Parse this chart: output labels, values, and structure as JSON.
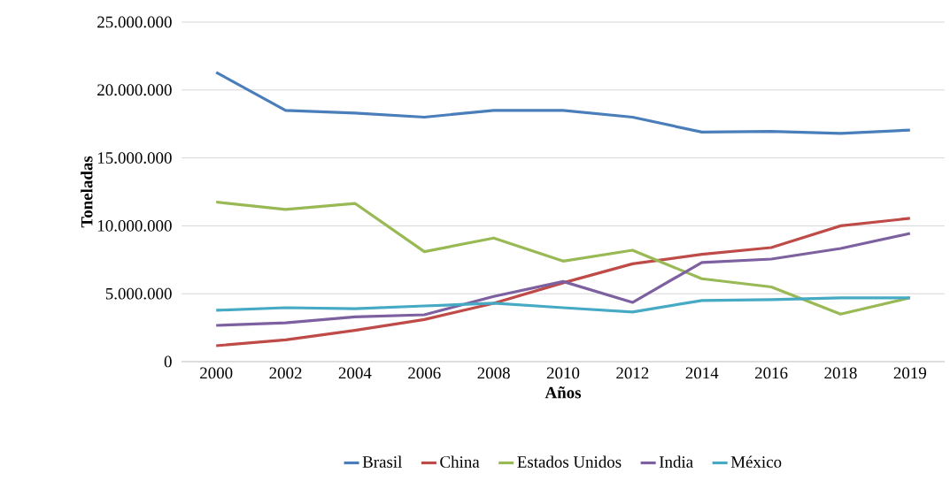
{
  "chart_data": {
    "type": "line",
    "xlabel": "Años",
    "ylabel": "Toneladas",
    "categories": [
      "2000",
      "2002",
      "2004",
      "2006",
      "2008",
      "2010",
      "2012",
      "2014",
      "2016",
      "2018",
      "2019"
    ],
    "series": [
      {
        "name": "Brasil",
        "color": "#4a7ebb",
        "values": [
          21300000,
          18500000,
          18300000,
          18000000,
          18500000,
          18500000,
          18000000,
          16900000,
          16950000,
          16800000,
          17050000
        ]
      },
      {
        "name": "China",
        "color": "#be4b48",
        "values": [
          1170000,
          1600000,
          2300000,
          3100000,
          4300000,
          5800000,
          7200000,
          7900000,
          8400000,
          10000000,
          10550000
        ]
      },
      {
        "name": "Estados Unidos",
        "color": "#98b954",
        "values": [
          11750000,
          11200000,
          11650000,
          8100000,
          9100000,
          7400000,
          8200000,
          6100000,
          5500000,
          3500000,
          4700000
        ]
      },
      {
        "name": "India",
        "color": "#7d60a0",
        "values": [
          2670000,
          2860000,
          3300000,
          3450000,
          4800000,
          5900000,
          4360000,
          7300000,
          7550000,
          8330000,
          9440000
        ]
      },
      {
        "name": "México",
        "color": "#46aac5",
        "values": [
          3780000,
          3970000,
          3900000,
          4100000,
          4300000,
          3970000,
          3650000,
          4500000,
          4560000,
          4700000,
          4700000
        ]
      }
    ],
    "ylim": [
      0,
      25000000
    ],
    "yticks": [
      0,
      {
        "value": 5000000,
        "label": "5.000.000"
      },
      {
        "value": 10000000,
        "label": "10.000.000"
      },
      {
        "value": 15000000,
        "label": "15.000.000"
      },
      {
        "value": 20000000,
        "label": "20.000.000"
      },
      {
        "value": 25000000,
        "label": "25.000.000"
      }
    ],
    "grid": "y",
    "legend": "bottom",
    "marker": "none",
    "line_style": "solid"
  }
}
